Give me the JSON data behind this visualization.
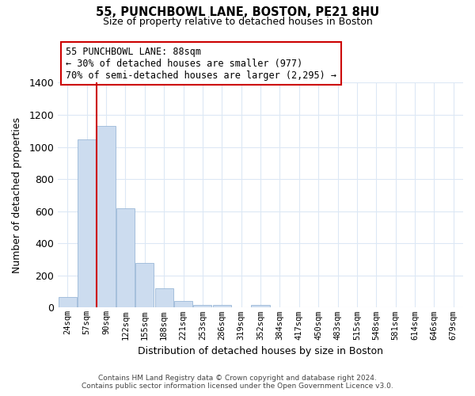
{
  "title": "55, PUNCHBOWL LANE, BOSTON, PE21 8HU",
  "subtitle": "Size of property relative to detached houses in Boston",
  "xlabel": "Distribution of detached houses by size in Boston",
  "ylabel": "Number of detached properties",
  "bar_labels": [
    "24sqm",
    "57sqm",
    "90sqm",
    "122sqm",
    "155sqm",
    "188sqm",
    "221sqm",
    "253sqm",
    "286sqm",
    "319sqm",
    "352sqm",
    "384sqm",
    "417sqm",
    "450sqm",
    "483sqm",
    "515sqm",
    "548sqm",
    "581sqm",
    "614sqm",
    "646sqm",
    "679sqm"
  ],
  "bar_values": [
    65,
    1047,
    1130,
    620,
    280,
    118,
    42,
    15,
    15,
    0,
    18,
    0,
    0,
    0,
    0,
    0,
    0,
    0,
    0,
    0,
    0
  ],
  "bar_color": "#ccdcef",
  "bar_edge_color": "#9ab8d8",
  "ylim": [
    0,
    1400
  ],
  "yticks": [
    0,
    200,
    400,
    600,
    800,
    1000,
    1200,
    1400
  ],
  "property_line_color": "#cc0000",
  "annotation_line1": "55 PUNCHBOWL LANE: 88sqm",
  "annotation_line2": "← 30% of detached houses are smaller (977)",
  "annotation_line3": "70% of semi-detached houses are larger (2,295) →",
  "annotation_box_color": "#ffffff",
  "annotation_box_edge_color": "#cc0000",
  "footer_line1": "Contains HM Land Registry data © Crown copyright and database right 2024.",
  "footer_line2": "Contains public sector information licensed under the Open Government Licence v3.0.",
  "background_color": "#ffffff",
  "grid_color": "#dce8f5"
}
